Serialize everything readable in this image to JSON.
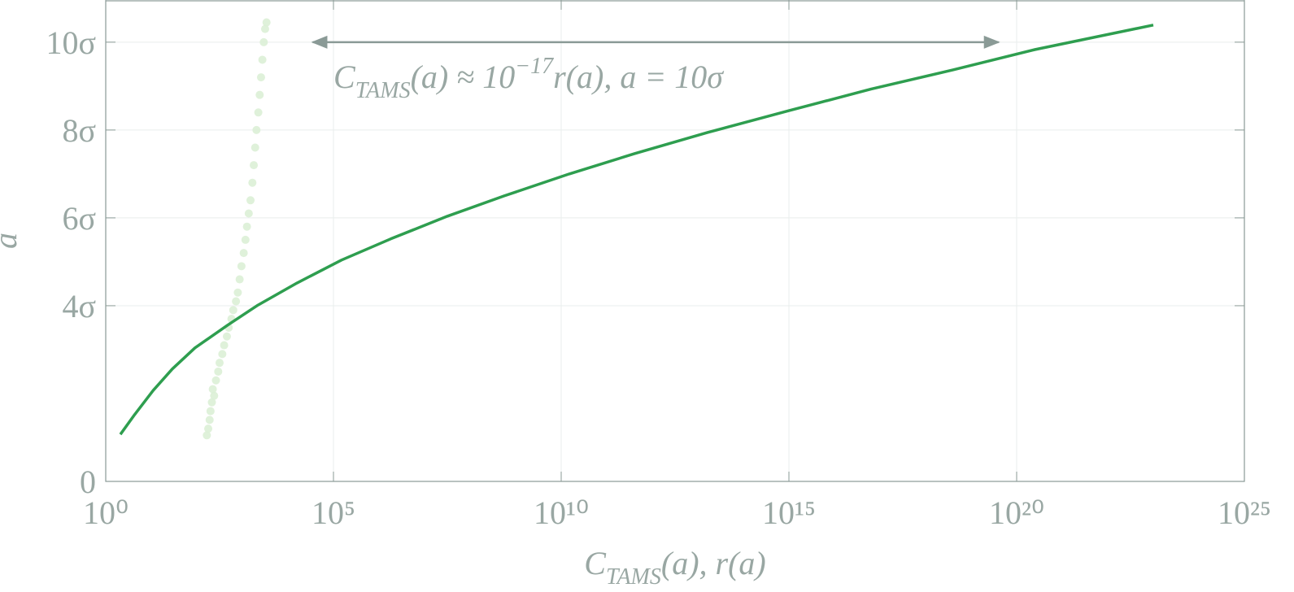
{
  "chart_data": {
    "type": "line",
    "x_label_parts": [
      "C",
      "TAMS",
      "(a), r(a)"
    ],
    "y_label": "a",
    "xscale": "log",
    "xlim": [
      1,
      1e+25
    ],
    "ylim": [
      0,
      10.96
    ],
    "xticks": [
      {
        "value": 1,
        "label": "10⁰"
      },
      {
        "value": 100000,
        "label": "10⁵"
      },
      {
        "value": 10000000000.0,
        "label": "10¹⁰"
      },
      {
        "value": 1000000000000000.0,
        "label": "10¹⁵"
      },
      {
        "value": 1e+20,
        "label": "10²⁰"
      },
      {
        "value": 1e+25,
        "label": "10²⁵"
      }
    ],
    "yticks": [
      0,
      {
        "value": 4,
        "label": "4σ"
      },
      {
        "value": 6,
        "label": "6σ"
      },
      {
        "value": 8,
        "label": "8σ"
      },
      {
        "value": 10,
        "label": "10σ"
      }
    ],
    "grid": true,
    "series": [
      {
        "type": "scatter",
        "color": "#dcf0d6",
        "x": [
          166,
          178,
          191,
          200,
          214,
          240,
          224,
          263,
          295,
          316,
          363,
          398,
          457,
          501,
          575,
          631,
          724,
          794,
          871,
          955,
          1070,
          1170,
          1260,
          1380,
          1510,
          1660,
          1780,
          1910,
          2040,
          2240,
          2400,
          2570,
          2750,
          2950,
          3160,
          3390
        ],
        "y": [
          1.05,
          1.2,
          1.4,
          1.6,
          1.8,
          1.95,
          2.1,
          2.3,
          2.5,
          2.7,
          2.9,
          3.1,
          3.3,
          3.5,
          3.7,
          3.9,
          4.1,
          4.3,
          4.6,
          4.9,
          5.2,
          5.5,
          5.8,
          6.1,
          6.4,
          6.8,
          7.2,
          7.6,
          8.0,
          8.4,
          8.8,
          9.2,
          9.6,
          10.0,
          10.3,
          10.45
        ]
      },
      {
        "type": "line",
        "color": "#2e9e4f",
        "x": [
          2.1,
          4.3,
          11,
          29,
          91,
          480,
          2100,
          16000,
          150000,
          1800000,
          32000000,
          560000000,
          15000000000,
          400000000000,
          16000000000000,
          1000000000000000.0,
          6.3e+16,
          4e+18,
          2.5e+20,
          1e+23
        ],
        "y": [
          1.07,
          1.52,
          2.07,
          2.56,
          3.04,
          3.56,
          4.0,
          4.52,
          5.04,
          5.52,
          6.04,
          6.5,
          7.0,
          7.46,
          7.94,
          8.44,
          8.93,
          9.37,
          9.83,
          10.39
        ]
      }
    ],
    "annotation": {
      "parts": [
        "C",
        "TAMS",
        "(a) ≈ 10",
        "−17",
        "r(a), a = 10σ"
      ],
      "arrow_x": [
        35000,
        4e+19
      ],
      "arrow_y": 10,
      "color": "#8a9a96"
    }
  }
}
